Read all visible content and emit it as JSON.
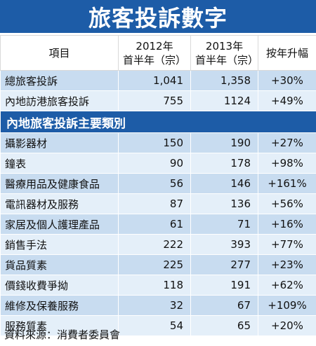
{
  "title": "旅客投訴數字",
  "header": {
    "item": "項目",
    "col2012_line1": "2012年",
    "col2012_line2": "首半年（宗）",
    "col2013_line1": "2013年",
    "col2013_line2": "首半年（宗）",
    "change": "按年升幅"
  },
  "top_rows": [
    {
      "label": "總旅客投訴",
      "y2012": "1,041",
      "y2013": "1,358",
      "change": "+30%"
    },
    {
      "label": "內地訪港旅客投訴",
      "y2012": "755",
      "y2013": "1124",
      "change": "+49%"
    }
  ],
  "section_title": "內地旅客投訴主要類別",
  "category_rows": [
    {
      "label": "攝影器材",
      "y2012": "150",
      "y2013": "190",
      "change": "+27%"
    },
    {
      "label": "鐘表",
      "y2012": "90",
      "y2013": "178",
      "change": "+98%"
    },
    {
      "label": "醫療用品及健康食品",
      "y2012": "56",
      "y2013": "146",
      "change": "+161%"
    },
    {
      "label": "電訊器材及服務",
      "y2012": "87",
      "y2013": "136",
      "change": "+56%"
    },
    {
      "label": "家居及個人護理產品",
      "y2012": "61",
      "y2013": "71",
      "change": "+16%"
    },
    {
      "label": "銷售手法",
      "y2012": "222",
      "y2013": "393",
      "change": "+77%"
    },
    {
      "label": "貨品質素",
      "y2012": "225",
      "y2013": "277",
      "change": "+23%"
    },
    {
      "label": "價錢收費爭拗",
      "y2012": "118",
      "y2013": "191",
      "change": "+62%"
    },
    {
      "label": "維修及保養服務",
      "y2012": "32",
      "y2013": "67",
      "change": "+109%"
    },
    {
      "label": "服務質素",
      "y2012": "54",
      "y2013": "65",
      "change": "+20%"
    }
  ],
  "source": "資料來源：消費者委員會",
  "colors": {
    "header_blue": "#1d5ca7",
    "row_dark": "#c8dcf0",
    "row_light": "#e4eff9"
  }
}
